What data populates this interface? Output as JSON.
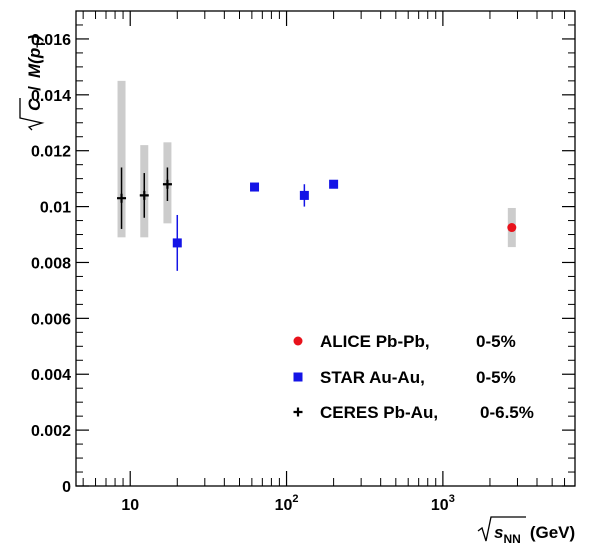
{
  "chart_data": {
    "type": "scatter",
    "x_scale": "log",
    "xlim": [
      4.5,
      7000
    ],
    "ylim": [
      0,
      0.017
    ],
    "x_ticks": [
      {
        "value": 10,
        "base": "10",
        "exp": ""
      },
      {
        "value": 100,
        "base": "10",
        "exp": "2"
      },
      {
        "value": 1000,
        "base": "10",
        "exp": "3"
      }
    ],
    "y_ticks": [
      {
        "value": 0,
        "label": "0"
      },
      {
        "value": 0.002,
        "label": "0.002"
      },
      {
        "value": 0.004,
        "label": "0.004"
      },
      {
        "value": 0.006,
        "label": "0.006"
      },
      {
        "value": 0.008,
        "label": "0.008"
      },
      {
        "value": 0.01,
        "label": "0.01"
      },
      {
        "value": 0.012,
        "label": "0.012"
      },
      {
        "value": 0.014,
        "label": "0.014"
      },
      {
        "value": 0.016,
        "label": "0.016"
      }
    ],
    "xlabel": {
      "sym": "s",
      "sub": "NN",
      "unit": "(GeV)"
    },
    "ylabel": {
      "sym": "C",
      "sep": "/",
      "func": "M(p",
      "sub": "T",
      "close": ")"
    },
    "legend_position": "bottom-right",
    "series": [
      {
        "name": "ALICE Pb-Pb,",
        "centrality": "0-5%",
        "marker": "circle",
        "color": "#e8121b",
        "points": [
          {
            "x": 2760,
            "y": 0.00925,
            "yerr": 0,
            "sys": 0.0007
          }
        ]
      },
      {
        "name": "STAR  Au-Au,",
        "centrality": "0-5%",
        "marker": "square",
        "color": "#1414e6",
        "points": [
          {
            "x": 20,
            "y": 0.0087,
            "yerr": 0.001,
            "sys": 0
          },
          {
            "x": 62.4,
            "y": 0.0107,
            "yerr": 0,
            "sys": 0
          },
          {
            "x": 130,
            "y": 0.0104,
            "yerr": 0.0004,
            "sys": 0
          },
          {
            "x": 200,
            "y": 0.0108,
            "yerr": 0,
            "sys": 0
          }
        ]
      },
      {
        "name": "CERES Pb-Au,",
        "centrality": "0-6.5%",
        "marker": "cross",
        "color": "#000000",
        "points": [
          {
            "x": 8.8,
            "y": 0.0103,
            "yerr": 0.0011,
            "sys_low": 0.0089,
            "sys_high": 0.0145
          },
          {
            "x": 12.3,
            "y": 0.0104,
            "yerr": 0.0008,
            "sys_low": 0.0089,
            "sys_high": 0.0122
          },
          {
            "x": 17.3,
            "y": 0.0108,
            "yerr": 0.0006,
            "sys_low": 0.0094,
            "sys_high": 0.0123
          }
        ]
      }
    ],
    "colors": {
      "band": "#cccccc",
      "axis": "#000000"
    }
  }
}
